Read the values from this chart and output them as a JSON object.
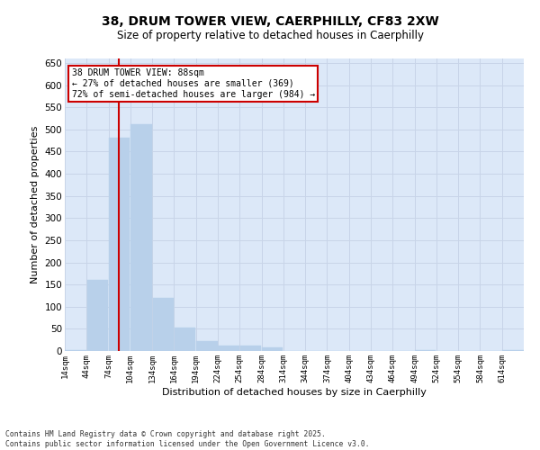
{
  "title_line1": "38, DRUM TOWER VIEW, CAERPHILLY, CF83 2XW",
  "title_line2": "Size of property relative to detached houses in Caerphilly",
  "xlabel": "Distribution of detached houses by size in Caerphilly",
  "ylabel": "Number of detached properties",
  "footer_line1": "Contains HM Land Registry data © Crown copyright and database right 2025.",
  "footer_line2": "Contains public sector information licensed under the Open Government Licence v3.0.",
  "annotation_title": "38 DRUM TOWER VIEW: 88sqm",
  "annotation_line2": "← 27% of detached houses are smaller (369)",
  "annotation_line3": "72% of semi-detached houses are larger (984) →",
  "bar_color": "#b8d0ea",
  "grid_color": "#c8d4e8",
  "background_color": "#dce8f8",
  "vline_color": "#cc0000",
  "vline_x": 88,
  "bin_width": 30,
  "categories": [
    14,
    44,
    74,
    104,
    134,
    164,
    194,
    224,
    254,
    284,
    314,
    344,
    374,
    404,
    434,
    464,
    494,
    524,
    554,
    584,
    614
  ],
  "values": [
    2,
    161,
    481,
    511,
    120,
    52,
    22,
    12,
    12,
    8,
    0,
    0,
    0,
    0,
    0,
    0,
    3,
    0,
    0,
    0,
    2
  ],
  "ylim": [
    0,
    660
  ],
  "yticks": [
    0,
    50,
    100,
    150,
    200,
    250,
    300,
    350,
    400,
    450,
    500,
    550,
    600,
    650
  ]
}
